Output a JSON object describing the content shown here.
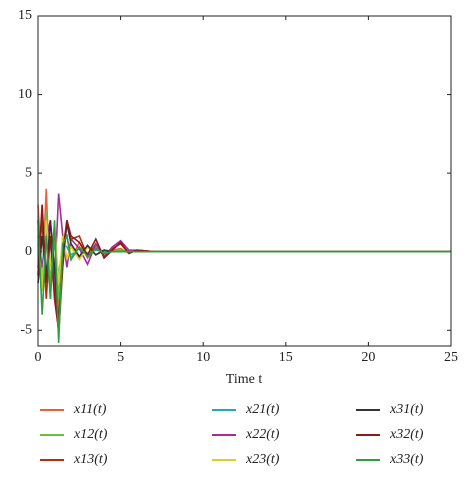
{
  "chart_data": {
    "type": "line",
    "xlabel": "Time t",
    "x": [
      0,
      0.25,
      0.5,
      0.75,
      1,
      1.25,
      1.5,
      1.75,
      2,
      2.5,
      3,
      3.5,
      4,
      4.5,
      5,
      5.5,
      6,
      7,
      8,
      10,
      25
    ],
    "xlim": [
      0,
      25
    ],
    "xticks": [
      0,
      5,
      10,
      15,
      20,
      25
    ],
    "ylim": [
      -6,
      15
    ],
    "yticks": [
      -5,
      0,
      5,
      10,
      15
    ],
    "series": [
      {
        "name": "x11(t)",
        "color": "#e8603c",
        "values": [
          3,
          -2,
          4,
          -3,
          1.5,
          -4,
          0.5,
          1,
          -0.5,
          0.6,
          -0.4,
          0.3,
          -0.2,
          0.1,
          0.2,
          -0.1,
          0.1,
          0,
          0,
          0,
          0
        ]
      },
      {
        "name": "x12(t)",
        "color": "#6cc040",
        "values": [
          2,
          -1.5,
          2.5,
          -2,
          1,
          -3,
          1,
          -0.5,
          0.5,
          -0.4,
          0.3,
          -0.2,
          0.1,
          0,
          0.1,
          0,
          0,
          0,
          0,
          0,
          0
        ]
      },
      {
        "name": "x13(t)",
        "color": "#b03010",
        "values": [
          -1,
          2,
          -3,
          1,
          -2,
          -5.2,
          -1,
          2,
          0.8,
          1,
          -0.3,
          0.5,
          -0.3,
          0.2,
          0.5,
          -0.1,
          0.1,
          0,
          0,
          0,
          0
        ]
      },
      {
        "name": "x21(t)",
        "color": "#2aa8b0",
        "values": [
          1,
          -1,
          1.5,
          -1,
          0.5,
          -1.5,
          0.5,
          0.3,
          -0.2,
          0.2,
          -0.1,
          0.1,
          0,
          0,
          0,
          0,
          0,
          0,
          0,
          0,
          0
        ]
      },
      {
        "name": "x22(t)",
        "color": "#a030a0",
        "values": [
          0.5,
          -1,
          0.8,
          2,
          -2,
          3.7,
          1,
          -1,
          0.8,
          0.2,
          -0.8,
          0.5,
          -0.3,
          0.3,
          0.7,
          0.1,
          0.1,
          0,
          0,
          0,
          0
        ]
      },
      {
        "name": "x23(t)",
        "color": "#d8d030",
        "values": [
          1.5,
          -2.5,
          2,
          -1,
          1.8,
          -2,
          1,
          -0.5,
          0.3,
          -0.5,
          0.3,
          -0.2,
          0.1,
          0,
          0,
          0,
          0,
          0,
          0,
          0,
          0
        ]
      },
      {
        "name": "x31(t)",
        "color": "#333333",
        "values": [
          -2,
          1,
          -1.5,
          2,
          -1,
          -4.5,
          -0.5,
          1.8,
          0.5,
          -0.3,
          0.4,
          -0.2,
          0.1,
          0,
          0,
          0,
          0,
          0,
          0,
          0,
          0
        ]
      },
      {
        "name": "x32(t)",
        "color": "#8b1a1a",
        "values": [
          -1.5,
          3,
          -2,
          1,
          -3,
          -5,
          0,
          2,
          1,
          0.6,
          -0.2,
          0.8,
          -0.4,
          0.1,
          0.6,
          -0.1,
          0.1,
          0,
          0,
          0,
          0
        ]
      },
      {
        "name": "x33(t)",
        "color": "#2e9e3e",
        "values": [
          2,
          -4,
          1,
          -3,
          2,
          -5.8,
          0.5,
          1,
          -0.5,
          0.3,
          -0.3,
          0.2,
          -0.1,
          0,
          0,
          0,
          0,
          0,
          0,
          0,
          0
        ]
      }
    ]
  }
}
